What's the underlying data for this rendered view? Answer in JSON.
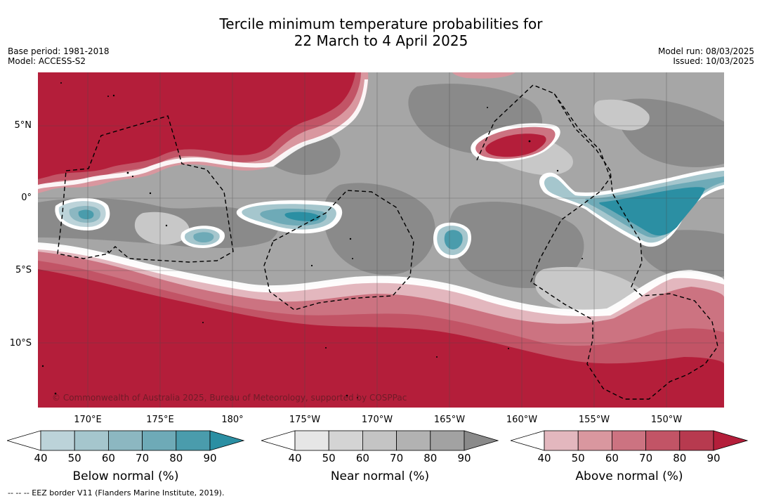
{
  "title_line1": "Tercile minimum temperature probabilities for",
  "title_line2": "22 March to 4 April 2025",
  "meta_left": {
    "base_period": "Base period: 1981-2018",
    "model": "Model: ACCESS-S2"
  },
  "meta_right": {
    "model_run": "Model run: 08/03/2025",
    "issued": "Issued: 10/03/2025"
  },
  "map": {
    "lat_labels": [
      "5°N",
      "0°",
      "5°S",
      "10°S"
    ],
    "lon_labels": [
      "170°E",
      "175°E",
      "180°",
      "175°W",
      "170°W",
      "165°W",
      "160°W",
      "155°W",
      "150°W"
    ],
    "copyright": "© Commonwealth of Australia 2025, Bureau of Meteorology, supported by COSPPac",
    "colors": {
      "above_max": "#b41e3a",
      "near_mid": "#a6a6a6",
      "near_dark": "#8a8a8a",
      "below_max": "#2b8fa3"
    }
  },
  "colorbars": [
    {
      "name": "below",
      "title": "Below normal (%)",
      "ticks": [
        "40",
        "50",
        "60",
        "70",
        "80",
        "90"
      ],
      "colors": [
        "#bcd3d9",
        "#a5c6cd",
        "#8cb7c1",
        "#6eaab7",
        "#4a9cac",
        "#2b8fa3"
      ]
    },
    {
      "name": "near",
      "title": "Near normal (%)",
      "ticks": [
        "40",
        "50",
        "60",
        "70",
        "80",
        "90"
      ],
      "colors": [
        "#e6e6e6",
        "#d4d4d4",
        "#c4c4c4",
        "#b2b2b2",
        "#a2a2a2",
        "#8a8a8a"
      ]
    },
    {
      "name": "above",
      "title": "Above normal (%)",
      "ticks": [
        "40",
        "50",
        "60",
        "70",
        "80",
        "90"
      ],
      "colors": [
        "#e3b7be",
        "#d9979f",
        "#cc7381",
        "#c25466",
        "#b73a4f",
        "#b41e3a"
      ]
    }
  ],
  "eez_note": "--  --  -- EEZ border V11 (Flanders Marine Institute, 2019)."
}
